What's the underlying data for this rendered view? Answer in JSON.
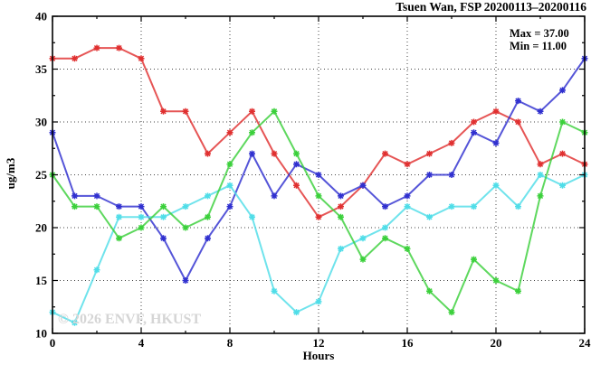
{
  "window": {
    "background": "#ffffff",
    "text_color": "#000000"
  },
  "chart_data": {
    "type": "line",
    "title": "Tsuen Wan, FSP 20200113–20200116",
    "xlabel": "Hours",
    "ylabel": "ug/m3",
    "xlim": [
      0,
      24
    ],
    "ylim": [
      10,
      40
    ],
    "x_major_ticks": [
      0,
      4,
      8,
      12,
      16,
      20,
      24
    ],
    "x_minor_ticks": [
      2,
      6,
      10,
      14,
      18,
      22
    ],
    "y_major_ticks": [
      10,
      15,
      20,
      25,
      30,
      35,
      40
    ],
    "y_minor_ticks": [
      12.5,
      17.5,
      22.5,
      27.5,
      32.5,
      37.5
    ],
    "grid": {
      "style": "dotted",
      "x_lines": [
        4,
        8,
        12,
        16,
        20
      ],
      "y_lines": [
        15,
        20,
        25,
        30,
        35
      ]
    },
    "legend": {
      "position": "top-right",
      "lines": [
        "Max = 37.00",
        "Min = 11.00"
      ]
    },
    "annotations": {
      "watermark": "© 2026 ENVF, HKUST"
    },
    "x": [
      0,
      1,
      2,
      3,
      4,
      5,
      6,
      7,
      8,
      9,
      10,
      11,
      12,
      13,
      14,
      15,
      16,
      17,
      18,
      19,
      20,
      21,
      22,
      23,
      24
    ],
    "series": [
      {
        "name": "red-series",
        "color": "#e03030",
        "marker": "asterisk",
        "values": [
          36,
          36,
          37,
          37,
          36,
          31,
          31,
          27,
          29,
          31,
          27,
          24,
          21,
          22,
          24,
          27,
          26,
          27,
          28,
          30,
          31,
          30,
          26,
          27,
          26
        ]
      },
      {
        "name": "blue-series",
        "color": "#3030cf",
        "marker": "asterisk",
        "values": [
          29,
          23,
          23,
          22,
          22,
          19,
          15,
          19,
          22,
          27,
          23,
          26,
          25,
          23,
          24,
          22,
          23,
          25,
          25,
          29,
          28,
          32,
          31,
          33,
          36
        ]
      },
      {
        "name": "cyan-series",
        "color": "#4fdde8",
        "marker": "asterisk",
        "values": [
          12,
          11,
          16,
          21,
          21,
          21,
          22,
          23,
          24,
          21,
          14,
          12,
          13,
          18,
          19,
          20,
          22,
          21,
          22,
          22,
          24,
          22,
          25,
          24,
          25
        ]
      },
      {
        "name": "green-series",
        "color": "#3bd03b",
        "marker": "asterisk",
        "values": [
          25,
          22,
          22,
          19,
          20,
          22,
          20,
          21,
          26,
          29,
          31,
          27,
          23,
          21,
          17,
          19,
          18,
          14,
          12,
          17,
          15,
          14,
          23,
          30,
          29
        ]
      }
    ]
  }
}
